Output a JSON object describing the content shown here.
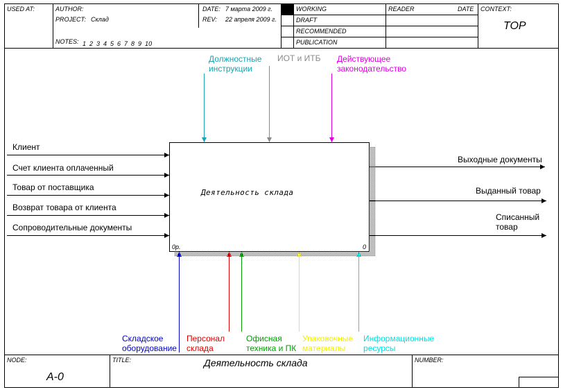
{
  "header": {
    "used_at_label": "USED AT:",
    "author_label": "AUTHOR:",
    "project_label": "PROJECT:",
    "project_value": "Склад",
    "notes_label": "NOTES:",
    "notes_values": "1  2  3  4  5  6  7  8  9  10",
    "date_label": "DATE:",
    "date_value": "7 марта 2009 г.",
    "rev_label": "REV:",
    "rev_value": "22 апреля 2009 г.",
    "status": [
      "WORKING",
      "DRAFT",
      "RECOMMENDED",
      "PUBLICATION"
    ],
    "reader_label": "READER",
    "reader_date_label": "DATE",
    "context_label": "CONTEXT:",
    "context_value": "TOP"
  },
  "activity": {
    "name": "Деятельность склада",
    "cost": "0р.",
    "number": "0"
  },
  "controls": [
    {
      "text": "Должностные\nинструкции",
      "color": "#1aa2b2"
    },
    {
      "text": "ИОТ и ИТБ",
      "color": "#8a8a8a"
    },
    {
      "text": "Действующее\nзаконодательство",
      "color": "#e000e0"
    }
  ],
  "inputs": [
    "Клиент",
    "Счет клиента оплаченный",
    "Товар от поставщика",
    "Возврат товара от клиента",
    "Сопроводительные документы"
  ],
  "outputs": [
    "Выходные документы",
    "Выданный товар",
    "Списанный\nтовар"
  ],
  "mechanisms": [
    {
      "text": "Складское\nоборудование",
      "color": "#0000c8"
    },
    {
      "text": "Персонал\nсклада",
      "color": "#e00000"
    },
    {
      "text": "Офисная\nтехника и ПК",
      "color": "#00a000"
    },
    {
      "text": "Упаковочные\nматериалы",
      "color": "#f0f000"
    },
    {
      "text": "Информационные\nресурсы",
      "color": "#00e0e0"
    }
  ],
  "footer": {
    "node_label": "NODE:",
    "node_value": "A-0",
    "title_label": "TITLE:",
    "title_value": "Деятельность склада",
    "number_label": "NUMBER:"
  }
}
